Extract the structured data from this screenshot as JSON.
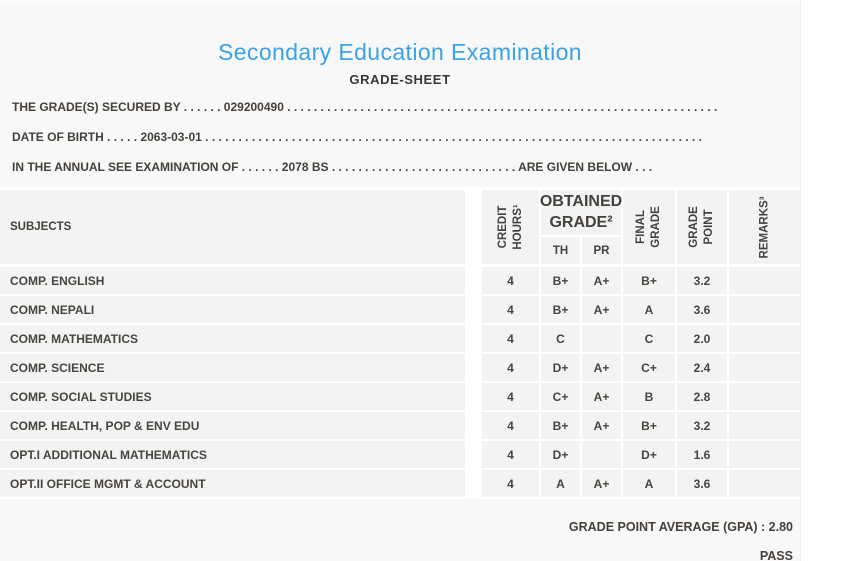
{
  "page": {
    "title": "Secondary Education Examination",
    "subtitle": "GRADE-SHEET"
  },
  "info_lines": {
    "line1": "THE GRADE(S) SECURED BY . . . . . . 029200490 . . . . . . . . . . . . . . . . . . . . . . . . . . . . . . . . . . . . . . . . . . . . . . . . . . . . . . . . . . . . . . . . . . . . . .",
    "line2": "DATE OF BIRTH . . . . . 2063-03-01 . . . . . . . . . . . . . . . . . . . . . . . . . . . . . . . . . . . . . . . . . . . . . . . . . . . . . . . . . . . . . . . . . . . . . . . . . . .",
    "line3": "IN THE ANNUAL SEE EXAMINATION OF . . . . . . 2078 BS . . . . . . . . . . . . . . . . . . . . . . . . . . . . ARE GIVEN BELOW . . ."
  },
  "table": {
    "headers": {
      "subjects": "SUBJECTS",
      "credit_hours": {
        "line1": "CREDIT",
        "line2": "HOURS¹"
      },
      "obtained_grade": {
        "line1": "OBTAINED",
        "line2": "GRADE²"
      },
      "th": "TH",
      "pr": "PR",
      "final_grade": {
        "line1": "FINAL",
        "line2": "GRADE"
      },
      "grade_point": {
        "line1": "GRADE",
        "line2": "POINT"
      },
      "remarks": "REMARKS³"
    },
    "rows": [
      {
        "subject": "COMP. ENGLISH",
        "credit": "4",
        "th": "B+",
        "pr": "A+",
        "final": "B+",
        "grade_point": "3.2",
        "remarks": ""
      },
      {
        "subject": "COMP. NEPALI",
        "credit": "4",
        "th": "B+",
        "pr": "A+",
        "final": "A",
        "grade_point": "3.6",
        "remarks": ""
      },
      {
        "subject": "COMP. MATHEMATICS",
        "credit": "4",
        "th": "C",
        "pr": "",
        "final": "C",
        "grade_point": "2.0",
        "remarks": ""
      },
      {
        "subject": "COMP. SCIENCE",
        "credit": "4",
        "th": "D+",
        "pr": "A+",
        "final": "C+",
        "grade_point": "2.4",
        "remarks": ""
      },
      {
        "subject": "COMP. SOCIAL STUDIES",
        "credit": "4",
        "th": "C+",
        "pr": "A+",
        "final": "B",
        "grade_point": "2.8",
        "remarks": ""
      },
      {
        "subject": "COMP. HEALTH, POP & ENV EDU",
        "credit": "4",
        "th": "B+",
        "pr": "A+",
        "final": "B+",
        "grade_point": "3.2",
        "remarks": ""
      },
      {
        "subject": "OPT.I ADDITIONAL MATHEMATICS",
        "credit": "4",
        "th": "D+",
        "pr": "",
        "final": "D+",
        "grade_point": "1.6",
        "remarks": ""
      },
      {
        "subject": "OPT.II OFFICE MGMT & ACCOUNT",
        "credit": "4",
        "th": "A",
        "pr": "A+",
        "final": "A",
        "grade_point": "3.6",
        "remarks": ""
      }
    ]
  },
  "summary": {
    "gpa_line": "GRADE POINT AVERAGE (GPA) : 2.80",
    "result": "PASS"
  },
  "colors": {
    "accent_blue": "#3aa2ea",
    "text_dark": "#45403a",
    "card_bg": "#f8f8f8",
    "cell_bg": "#f3f3f3"
  }
}
